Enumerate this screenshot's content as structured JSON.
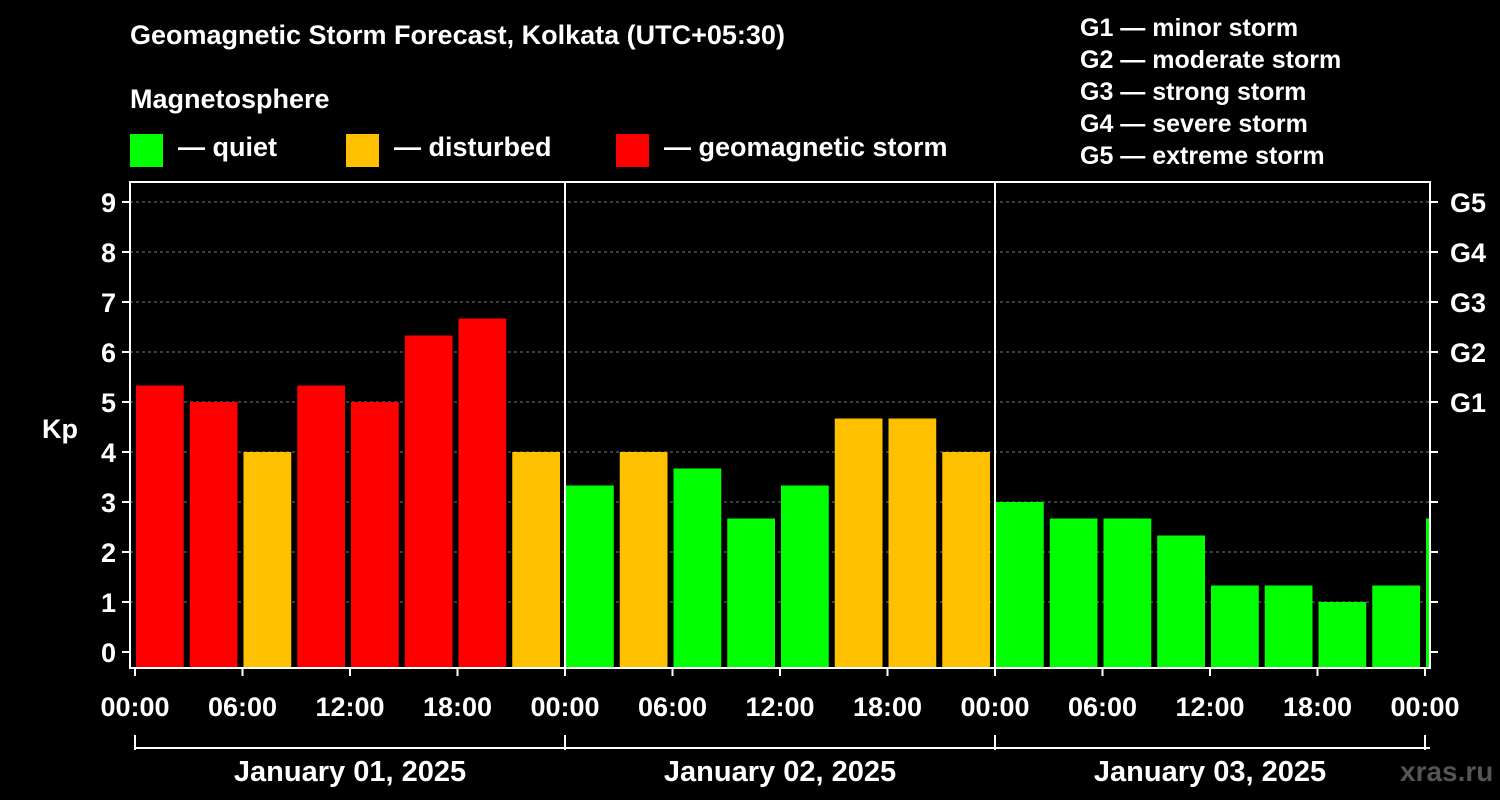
{
  "header": {
    "title": "Geomagnetic Storm Forecast, Kolkata (UTC+05:30)",
    "magnetosphere_label": "Magnetosphere"
  },
  "legend": {
    "quiet_label": "— quiet",
    "disturbed_label": "— disturbed",
    "storm_label": "— geomagnetic storm",
    "colors": {
      "quiet": "#00ff00",
      "disturbed": "#ffc000",
      "storm": "#ff0000"
    }
  },
  "g_scale": [
    "G1 — minor storm",
    "G2 — moderate storm",
    "G3 — strong storm",
    "G4 — severe storm",
    "G5 — extreme storm"
  ],
  "chart_data": {
    "type": "bar",
    "ylabel": "Kp",
    "ylim": [
      0,
      9
    ],
    "y_ticks": [
      "0",
      "1",
      "2",
      "3",
      "4",
      "5",
      "6",
      "7",
      "8",
      "9"
    ],
    "right_axis_labels": [
      {
        "kp": 5,
        "label": "G1"
      },
      {
        "kp": 6,
        "label": "G2"
      },
      {
        "kp": 7,
        "label": "G3"
      },
      {
        "kp": 8,
        "label": "G4"
      },
      {
        "kp": 9,
        "label": "G5"
      }
    ],
    "x_ticks": [
      "00:00",
      "06:00",
      "12:00",
      "18:00",
      "00:00",
      "06:00",
      "12:00",
      "18:00",
      "00:00",
      "06:00",
      "12:00",
      "18:00",
      "00:00"
    ],
    "x_range_hours": [
      0,
      72
    ],
    "days": [
      "January 01, 2025",
      "January 02, 2025",
      "January 03, 2025"
    ],
    "bars": [
      {
        "start_hour": 0,
        "value": 5.33,
        "level": "storm"
      },
      {
        "start_hour": 3,
        "value": 5.0,
        "level": "storm"
      },
      {
        "start_hour": 6,
        "value": 4.0,
        "level": "disturbed"
      },
      {
        "start_hour": 9,
        "value": 5.33,
        "level": "storm"
      },
      {
        "start_hour": 12,
        "value": 5.0,
        "level": "storm"
      },
      {
        "start_hour": 15,
        "value": 6.33,
        "level": "storm"
      },
      {
        "start_hour": 18,
        "value": 6.67,
        "level": "storm"
      },
      {
        "start_hour": 21,
        "value": 4.0,
        "level": "disturbed"
      },
      {
        "start_hour": 24,
        "value": 3.33,
        "level": "quiet"
      },
      {
        "start_hour": 27,
        "value": 4.0,
        "level": "disturbed"
      },
      {
        "start_hour": 30,
        "value": 3.67,
        "level": "quiet"
      },
      {
        "start_hour": 33,
        "value": 2.67,
        "level": "quiet"
      },
      {
        "start_hour": 36,
        "value": 3.33,
        "level": "quiet"
      },
      {
        "start_hour": 39,
        "value": 4.67,
        "level": "disturbed"
      },
      {
        "start_hour": 42,
        "value": 4.67,
        "level": "disturbed"
      },
      {
        "start_hour": 45,
        "value": 4.0,
        "level": "disturbed"
      },
      {
        "start_hour": 48,
        "value": 3.0,
        "level": "quiet"
      },
      {
        "start_hour": 51,
        "value": 2.67,
        "level": "quiet"
      },
      {
        "start_hour": 54,
        "value": 2.67,
        "level": "quiet"
      },
      {
        "start_hour": 57,
        "value": 2.33,
        "level": "quiet"
      },
      {
        "start_hour": 60,
        "value": 1.33,
        "level": "quiet"
      },
      {
        "start_hour": 63,
        "value": 1.33,
        "level": "quiet"
      },
      {
        "start_hour": 66,
        "value": 1.0,
        "level": "quiet"
      },
      {
        "start_hour": 69,
        "value": 1.33,
        "level": "quiet"
      },
      {
        "start_hour": 72,
        "value": 2.67,
        "level": "quiet"
      }
    ]
  },
  "watermark": "xras.ru"
}
